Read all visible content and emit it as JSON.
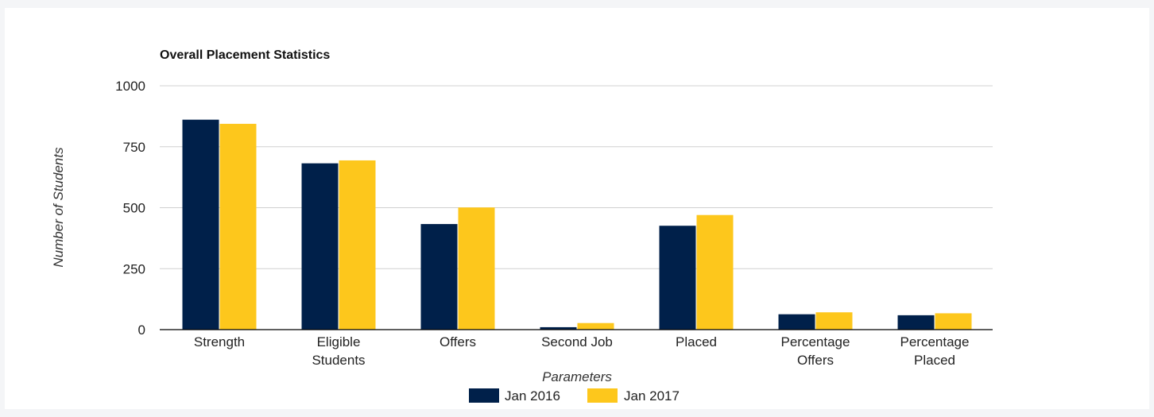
{
  "colors": {
    "jan2016": "#00204a",
    "jan2017": "#fdc71c",
    "grid": "#d0d0d0",
    "axis": "#000000"
  },
  "chart_data": {
    "type": "bar",
    "title": "Overall Placement Statistics",
    "xlabel": "Parameters",
    "ylabel": "Number of Students",
    "ylim": [
      0,
      1000
    ],
    "yticks": [
      "0",
      "250",
      "500",
      "750",
      "1000"
    ],
    "ytick_values": [
      0,
      250,
      500,
      750,
      1000
    ],
    "grid": true,
    "legend_position": "bottom",
    "categories": [
      [
        "Strength"
      ],
      [
        "Eligible",
        "Students"
      ],
      [
        "Offers"
      ],
      [
        "Second Job"
      ],
      [
        "Placed"
      ],
      [
        "Percentage",
        "Offers"
      ],
      [
        "Percentage",
        "Placed"
      ]
    ],
    "series": [
      {
        "name": "Jan 2016",
        "color": "#00204a",
        "values": [
          861,
          682,
          433,
          10,
          426,
          63,
          59
        ]
      },
      {
        "name": "Jan 2017",
        "color": "#fdc71c",
        "values": [
          844,
          694,
          501,
          27,
          470,
          71,
          67
        ]
      }
    ]
  }
}
